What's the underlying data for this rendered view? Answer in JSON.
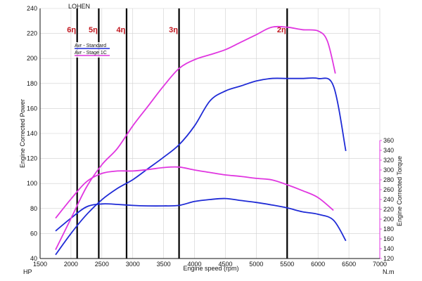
{
  "chart_data": {
    "type": "line",
    "header_label": "LOHEN",
    "xlabel": "Engine speed (rpm)",
    "ylabel_left": "Engine Corrected Power",
    "ylabel_right": "Engine Corrected Torque",
    "unit_left": "HP",
    "unit_right": "N.m",
    "xlim": [
      1500,
      7000
    ],
    "ylim_left": [
      40,
      240
    ],
    "ylim_right": [
      120,
      360
    ],
    "x_ticks": [
      1500,
      2000,
      2500,
      3000,
      3500,
      4000,
      4500,
      5000,
      5500,
      6000,
      6500,
      7000
    ],
    "y_ticks_left": [
      40,
      60,
      80,
      100,
      120,
      140,
      160,
      180,
      200,
      220,
      240
    ],
    "y_ticks_right": [
      120,
      140,
      160,
      180,
      200,
      220,
      240,
      260,
      280,
      300,
      320,
      340,
      360
    ],
    "grid": true,
    "legend_position": "top-left",
    "series": [
      {
        "name": "Avr - Standard",
        "color": "#1f2bd6",
        "power": {
          "x": [
            1750,
            2000,
            2250,
            2500,
            2750,
            3000,
            3250,
            3500,
            3750,
            4000,
            4250,
            4500,
            4750,
            5000,
            5250,
            5500,
            5750,
            6000,
            6250,
            6450
          ],
          "y": [
            43,
            60,
            75,
            87,
            96,
            103,
            112,
            121,
            131,
            146,
            166,
            174,
            178,
            182,
            184,
            184,
            184,
            184,
            178,
            126
          ]
        },
        "torque": {
          "x": [
            1750,
            2000,
            2250,
            2500,
            2750,
            3000,
            3250,
            3500,
            3750,
            4000,
            4250,
            4500,
            4750,
            5000,
            5250,
            5500,
            5750,
            6000,
            6250,
            6450
          ],
          "y": [
            176,
            202,
            225,
            231,
            230,
            228,
            227,
            227,
            228,
            236,
            240,
            242,
            238,
            234,
            229,
            223,
            215,
            210,
            198,
            156
          ]
        }
      },
      {
        "name": "Avr - Stage 1C",
        "color": "#e036e0",
        "power": {
          "x": [
            1750,
            2000,
            2250,
            2500,
            2750,
            3000,
            3250,
            3500,
            3750,
            4000,
            4250,
            4500,
            4750,
            5000,
            5250,
            5500,
            5750,
            6000,
            6150,
            6280
          ],
          "y": [
            47,
            72,
            97,
            115,
            128,
            146,
            162,
            178,
            192,
            199,
            203,
            207,
            213,
            219,
            225,
            225,
            223,
            222,
            214,
            188
          ]
        },
        "torque": {
          "x": [
            1750,
            2000,
            2250,
            2500,
            2750,
            3000,
            3250,
            3500,
            3750,
            4000,
            4250,
            4500,
            4750,
            5000,
            5250,
            5500,
            5750,
            6000,
            6250
          ],
          "y": [
            202,
            241,
            276,
            293,
            298,
            298,
            301,
            305,
            306,
            300,
            295,
            290,
            287,
            283,
            280,
            270,
            258,
            244,
            218
          ]
        }
      }
    ],
    "gear_markers": [
      {
        "label": "6η",
        "rpm": 2100
      },
      {
        "label": "5η",
        "rpm": 2450
      },
      {
        "label": "4η",
        "rpm": 2900
      },
      {
        "label": "3η",
        "rpm": 3750
      },
      {
        "label": "2η",
        "rpm": 5500
      }
    ],
    "gear_line_color": "#000000",
    "header_color": "#c0141c"
  }
}
